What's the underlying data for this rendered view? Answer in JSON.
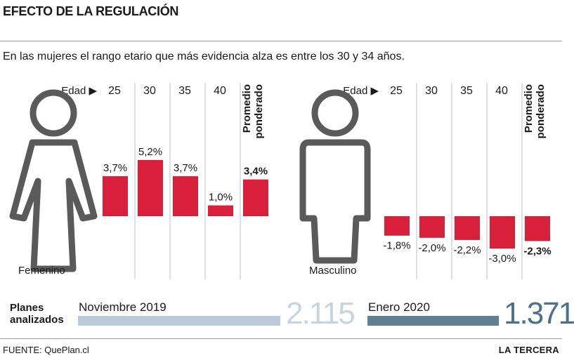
{
  "header": {
    "title": "EFECTO DE LA REGULACIÓN",
    "subtitle": "En las mujeres el rango etario que más evidencia alza es entre los 30 y 34 años."
  },
  "chart_data": [
    {
      "type": "bar",
      "name": "Femenino",
      "axis_label": "Edad ▶",
      "categories": [
        "25",
        "30",
        "35",
        "40",
        "Promedio ponderado"
      ],
      "values": [
        3.7,
        5.2,
        3.7,
        1.0,
        3.4
      ],
      "labels": [
        "3,7%",
        "5,2%",
        "3,7%",
        "1,0%",
        "3,4%"
      ],
      "highlight_index": 4,
      "color": "#d8203a"
    },
    {
      "type": "bar",
      "name": "Masculino",
      "axis_label": "Edad ▶",
      "categories": [
        "25",
        "30",
        "35",
        "40",
        "Promedio ponderado"
      ],
      "values": [
        -1.8,
        -2.0,
        -2.2,
        -3.0,
        -2.3
      ],
      "labels": [
        "-1,8%",
        "-2,0%",
        "-2,2%",
        "-3,0%",
        "-2,3%"
      ],
      "highlight_index": 4,
      "color": "#d8203a"
    }
  ],
  "plans": {
    "label_line1": "Planes",
    "label_line2": "analizados",
    "items": [
      {
        "period": "Noviembre 2019",
        "value": 2115,
        "display": "2.115",
        "color": "#b9cbd9",
        "text_color": "#c6d4df"
      },
      {
        "period": "Enero 2020",
        "value": 1371,
        "display": "1.371",
        "color": "#5f7f95",
        "text_color": "#4f7088"
      }
    ]
  },
  "colors": {
    "bar": "#d8203a",
    "silhouette": "#5a5a5a",
    "divider": "#c0c0c0"
  },
  "footer": {
    "source": "FUENTE: QuePlan.cl",
    "brand": "LA TERCERA"
  }
}
